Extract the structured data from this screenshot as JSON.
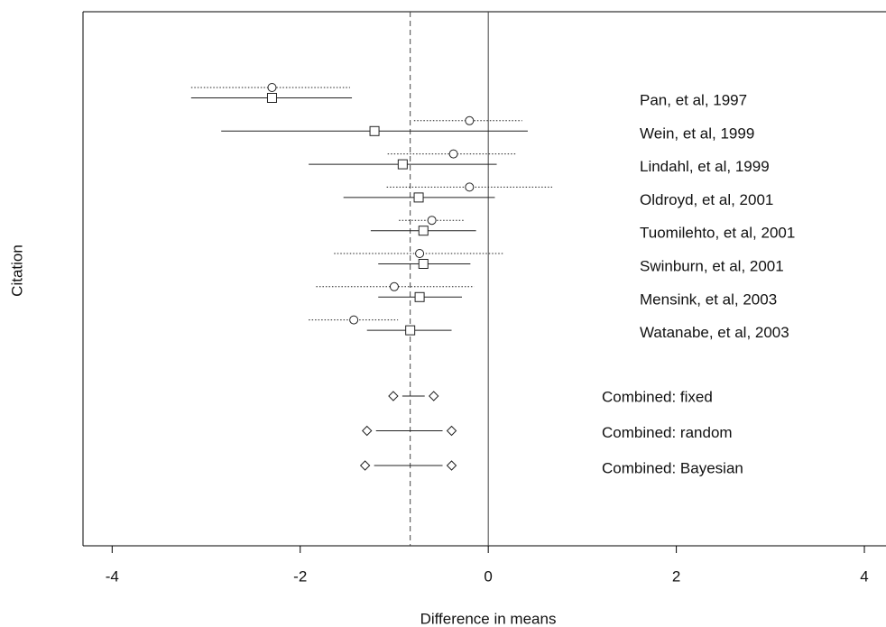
{
  "chart_data": {
    "type": "forest",
    "x_label": "Difference in means",
    "y_label": "Citation",
    "xlim": [
      -4.31,
      4.23
    ],
    "xticks": [
      -4,
      -2,
      0,
      2,
      4
    ],
    "zero_line": 0,
    "dashed_line": -0.83,
    "studies": [
      {
        "label": "Pan, et al, 1997",
        "circle": {
          "est": -2.3,
          "lo": -3.16,
          "hi": -1.47
        },
        "square": {
          "est": -2.3,
          "lo": -3.16,
          "hi": -1.45
        }
      },
      {
        "label": "Wein, et al, 1999",
        "circle": {
          "est": -0.2,
          "lo": -0.79,
          "hi": 0.36
        },
        "square": {
          "est": -1.21,
          "lo": -2.84,
          "hi": 0.42
        }
      },
      {
        "label": "Lindahl, et al, 1999",
        "circle": {
          "est": -0.37,
          "lo": -1.07,
          "hi": 0.3
        },
        "square": {
          "est": -0.91,
          "lo": -1.91,
          "hi": 0.09
        }
      },
      {
        "label": "Oldroyd, et al, 2001",
        "circle": {
          "est": -0.2,
          "lo": -1.08,
          "hi": 0.68
        },
        "square": {
          "est": -0.74,
          "lo": -1.54,
          "hi": 0.07
        }
      },
      {
        "label": "Tuomilehto, et al, 2001",
        "circle": {
          "est": -0.6,
          "lo": -0.95,
          "hi": -0.25
        },
        "square": {
          "est": -0.69,
          "lo": -1.25,
          "hi": -0.13
        }
      },
      {
        "label": "Swinburn, et al, 2001",
        "circle": {
          "est": -0.73,
          "lo": -1.64,
          "hi": 0.17
        },
        "square": {
          "est": -0.69,
          "lo": -1.17,
          "hi": -0.19
        }
      },
      {
        "label": "Mensink, et al, 2003",
        "circle": {
          "est": -1.0,
          "lo": -1.83,
          "hi": -0.15
        },
        "square": {
          "est": -0.73,
          "lo": -1.17,
          "hi": -0.28
        }
      },
      {
        "label": "Watanabe, et al, 2003",
        "circle": {
          "est": -1.43,
          "lo": -1.91,
          "hi": -0.96
        },
        "square": {
          "est": -0.83,
          "lo": -1.29,
          "hi": -0.39
        }
      }
    ],
    "combined": [
      {
        "label": "Combined: fixed",
        "lo": -1.01,
        "hi": -0.58
      },
      {
        "label": "Combined: random",
        "lo": -1.29,
        "hi": -0.39
      },
      {
        "label": "Combined: Bayesian",
        "lo": -1.31,
        "hi": -0.39
      }
    ]
  }
}
